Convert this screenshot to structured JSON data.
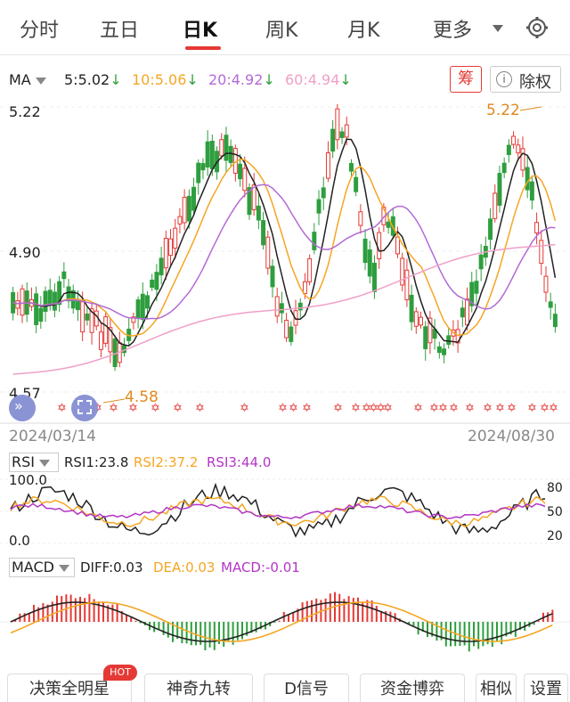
{
  "tabs": [
    {
      "label": "分时"
    },
    {
      "label": "五日"
    },
    {
      "label": "日K"
    },
    {
      "label": "周K"
    },
    {
      "label": "月K"
    },
    {
      "label": "更多"
    }
  ],
  "ma_bar": {
    "label": "MA",
    "ma5": "5:5.02",
    "ma10": "10:5.06",
    "ma20": "20:4.92",
    "ma60": "60:4.94",
    "arrow": "↓",
    "fuquan_short": "筹",
    "fuquan": "除权",
    "info": "i"
  },
  "colors": {
    "up": "#e53935",
    "down": "#2e9e3e",
    "ma5": "#222222",
    "ma10": "#f5a623",
    "ma20": "#b36ad6",
    "ma60": "#f0a0c8",
    "accent": "#e53935"
  },
  "kchart": {
    "high_label": "5.22",
    "mid_label": "4.90",
    "low_label": "4.57",
    "max_marker": "5.22",
    "min_marker": "4.58",
    "start_date": "2024/03/14",
    "end_date": "2024/08/30"
  },
  "rsi": {
    "name": "RSI",
    "rsi1": "RSI1:23.8",
    "rsi2": "RSI2:37.2",
    "rsi3": "RSI3:44.0",
    "top": "100.0",
    "bottom": "0.0",
    "r80": "80",
    "r50": "50",
    "r20": "20"
  },
  "macd": {
    "name": "MACD",
    "diff": "DIFF:0.03",
    "dea": "DEA:0.03",
    "macd": "MACD:-0.01"
  },
  "bottom": {
    "b1": "决策全明星",
    "hot": "HOT",
    "b2": "神奇九转",
    "b3": "D信号",
    "b4": "资金博弈",
    "b5": "相似",
    "b6": "设置"
  },
  "chart_data": {
    "type": "candlestick",
    "x_start": "2024/03/14",
    "x_end": "2024/08/30",
    "y_labels": [
      "5.22",
      "4.90",
      "4.57"
    ],
    "ylim": [
      4.57,
      5.22
    ],
    "max_price": 5.22,
    "min_price": 4.58,
    "ma": {
      "MA5": 5.02,
      "MA10": 5.06,
      "MA20": 4.92,
      "MA60": 4.94
    },
    "rsi": {
      "RSI1": 23.8,
      "RSI2": 37.2,
      "RSI3": 44.0,
      "ylim": [
        0,
        100
      ]
    },
    "macd": {
      "DIFF": 0.03,
      "DEA": 0.03,
      "MACD": -0.01
    }
  }
}
